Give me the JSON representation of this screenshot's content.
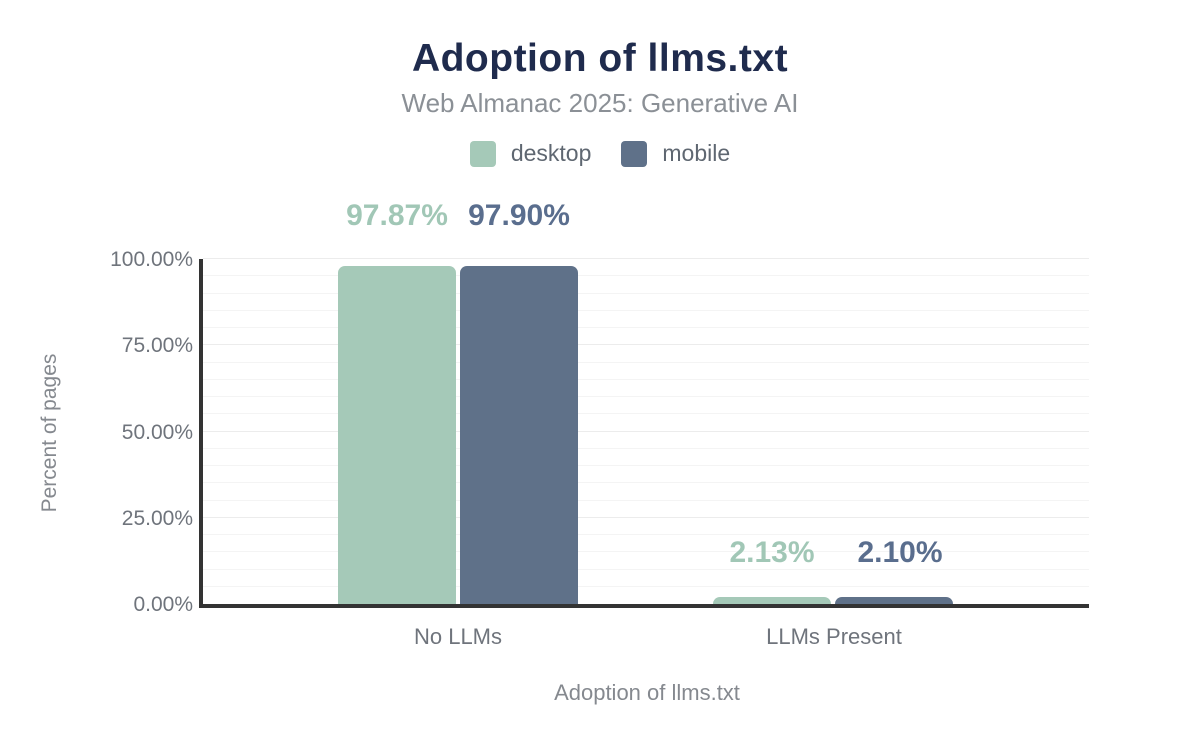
{
  "header": {
    "title": "Adoption of llms.txt",
    "subtitle": "Web Almanac 2025: Generative AI"
  },
  "chart_data": {
    "type": "bar",
    "title": "Adoption of llms.txt",
    "subtitle": "Web Almanac 2025: Generative AI",
    "categories": [
      "No LLMs",
      "LLMs Present"
    ],
    "series": [
      {
        "name": "desktop",
        "color": "#a5c9b8",
        "values": [
          97.87,
          2.13
        ],
        "value_labels": [
          "97.87%",
          "2.13%"
        ]
      },
      {
        "name": "mobile",
        "color": "#5f7189",
        "values": [
          97.9,
          2.1
        ],
        "value_labels": [
          "97.90%",
          "2.10%"
        ]
      }
    ],
    "xlabel": "Adoption of llms.txt",
    "ylabel": "Percent of pages",
    "ylim": [
      0,
      100
    ],
    "yticks": [
      "0.00%",
      "25.00%",
      "50.00%",
      "75.00%",
      "100.00%"
    ],
    "grid": {
      "on": true,
      "minor_step": 5,
      "major_step": 25
    },
    "legend_position": "top"
  },
  "colors": {
    "title_navy": "#1f2b4d",
    "desktop": "#a5c9b8",
    "mobile": "#5f7189",
    "axis_line": "#333333",
    "text_gray": "#85898f"
  }
}
